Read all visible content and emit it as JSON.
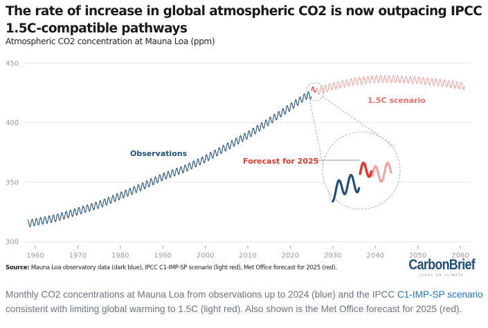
{
  "title": "The rate of increase in global atmospheric CO2 is now outpacing IPCC 1.5C-compatible pathways",
  "subtitle": "Atmospheric CO2 concentration at Mauna Loa (ppm)",
  "source": {
    "label": "Source:",
    "text": " Mauna Loa observatory data (dark blue), IPCC C1-IMP-SP scenario (light red), Met Office forecast for 2025 (red)."
  },
  "logo": {
    "name": "CarbonBrief",
    "tagline": "CLEAR ON CLIMATE"
  },
  "caption": {
    "before_link": "Monthly CO2 concentrations at Mauna Loa from observations up to 2024 (blue) and the IPCC ",
    "link_text": "C1-IMP-SP scenario",
    "after_link": " consistent with limiting global warming to 1.5C (light red). Also shown is the Met Office forecast for 2025 (red)."
  },
  "colors": {
    "observations": "#1f4e79",
    "scenario": "#f0a3a3",
    "forecast": "#e0372f",
    "scenario_label": "#e8716b",
    "forecast_label": "#d93a32",
    "observations_label": "#1f4e79",
    "grid": "#e6e6e6",
    "connector": "#a0a0a0"
  },
  "chart_data": {
    "type": "line",
    "title": "The rate of increase in global atmospheric CO2 is now outpacing IPCC 1.5C-compatible pathways",
    "ylabel": "Atmospheric CO2 concentration at Mauna Loa (ppm)",
    "xlabel": "",
    "xlim": [
      1957,
      2062
    ],
    "ylim": [
      300,
      450
    ],
    "x_ticks": [
      1960,
      1970,
      1980,
      1990,
      2000,
      2010,
      2020,
      2030,
      2040,
      2050,
      2060
    ],
    "y_ticks": [
      300,
      350,
      400,
      450
    ],
    "grid": true,
    "seasonal_amplitude_ppm": 3,
    "series": [
      {
        "name": "Observations",
        "color": "observations",
        "monthly": true,
        "start_year": 1958.2,
        "end_year": 2024.95,
        "trend_points": [
          [
            1958,
            315
          ],
          [
            1965,
            320
          ],
          [
            1970,
            325.5
          ],
          [
            1975,
            331
          ],
          [
            1980,
            338.5
          ],
          [
            1985,
            346
          ],
          [
            1990,
            354.5
          ],
          [
            1995,
            361
          ],
          [
            2000,
            369.5
          ],
          [
            2005,
            379.5
          ],
          [
            2010,
            389.5
          ],
          [
            2015,
            401
          ],
          [
            2020,
            413
          ],
          [
            2024,
            423
          ]
        ]
      },
      {
        "name": "Forecast for 2025",
        "color": "forecast",
        "monthly": true,
        "start_year": 2025.0,
        "end_year": 2025.95,
        "trend_points": [
          [
            2025,
            426.5
          ],
          [
            2026,
            429
          ]
        ]
      },
      {
        "name": "1.5C scenario",
        "color": "scenario",
        "monthly": true,
        "start_year": 2026.0,
        "end_year": 2061.0,
        "trend_points": [
          [
            2025,
            424.5
          ],
          [
            2030,
            430.5
          ],
          [
            2035,
            434.5
          ],
          [
            2040,
            436.5
          ],
          [
            2045,
            436.5
          ],
          [
            2050,
            435.5
          ],
          [
            2055,
            433.5
          ],
          [
            2061,
            430.5
          ]
        ]
      }
    ],
    "annotations": [
      {
        "text": "Observations",
        "color": "observations_label"
      },
      {
        "text": "Forecast for 2025",
        "color": "forecast_label"
      },
      {
        "text": "1.5C scenario",
        "color": "scenario_label"
      }
    ],
    "inset": {
      "description": "Magnified view around 2023–2027",
      "x_range": [
        2022.6,
        2027.6
      ]
    }
  }
}
